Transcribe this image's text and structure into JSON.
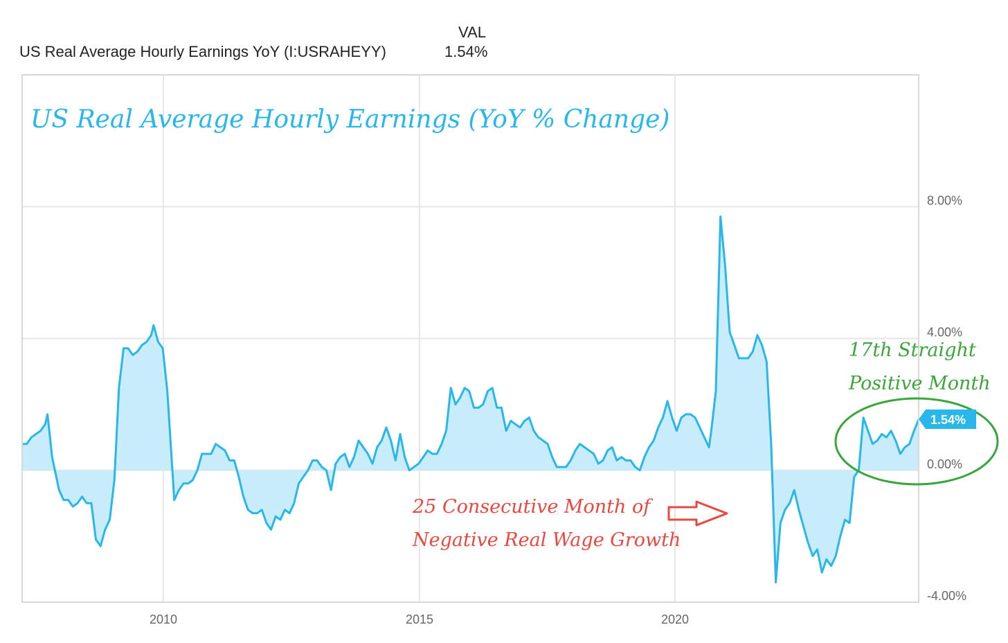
{
  "legend": {
    "column_header": "VAL",
    "series_label": "US Real Average Hourly Earnings YoY (I:USRAHEYY)",
    "series_value": "1.54%"
  },
  "annotations": {
    "title": "US Real Average Hourly Earnings (YoY % Change)",
    "positive_line1": "17th Straight",
    "positive_line2": "Positive Month",
    "negative_line1": "25 Consecutive Month of",
    "negative_line2": "Negative Real Wage Growth"
  },
  "colors": {
    "line": "#29b6e8",
    "fill": "#c8ecf9",
    "grid": "#e6e6e6",
    "title_text": "#29b6e8",
    "positive_note": "#3aa53a",
    "negative_note": "#e8483f",
    "badge": "#29b6e8"
  },
  "chart_data": {
    "type": "area",
    "title": "US Real Average Hourly Earnings (YoY % Change)",
    "xlabel": "",
    "ylabel": "",
    "xlim": [
      2007.2,
      2024.8
    ],
    "ylim": [
      -4.0,
      12.0
    ],
    "y_ticks": [
      {
        "value": 8,
        "label": "8.00%"
      },
      {
        "value": 4,
        "label": "4.00%"
      },
      {
        "value": 0,
        "label": "0.00%"
      },
      {
        "value": -4,
        "label": "-4.00%"
      }
    ],
    "x_ticks": [
      {
        "value": 2010,
        "label": "2010"
      },
      {
        "value": 2015,
        "label": "2015"
      },
      {
        "value": 2020,
        "label": "2020"
      }
    ],
    "grid": true,
    "last_value_label": "1.54%",
    "series": [
      {
        "name": "US Real Average Hourly Earnings YoY (I:USRAHEYY)",
        "points": [
          [
            2007.2,
            0.8
          ],
          [
            2007.3,
            0.8
          ],
          [
            2007.4,
            1.0
          ],
          [
            2007.6,
            1.2
          ],
          [
            2007.7,
            1.4
          ],
          [
            2007.75,
            1.7
          ],
          [
            2007.85,
            0.4
          ],
          [
            2008.0,
            -0.6
          ],
          [
            2008.1,
            -0.9
          ],
          [
            2008.2,
            -0.9
          ],
          [
            2008.3,
            -1.1
          ],
          [
            2008.4,
            -1.0
          ],
          [
            2008.5,
            -0.8
          ],
          [
            2008.6,
            -1.0
          ],
          [
            2008.7,
            -1.0
          ],
          [
            2008.8,
            -2.1
          ],
          [
            2008.9,
            -2.3
          ],
          [
            2009.0,
            -1.8
          ],
          [
            2009.1,
            -1.5
          ],
          [
            2009.2,
            -0.3
          ],
          [
            2009.3,
            2.5
          ],
          [
            2009.4,
            3.7
          ],
          [
            2009.5,
            3.7
          ],
          [
            2009.6,
            3.5
          ],
          [
            2009.7,
            3.6
          ],
          [
            2009.8,
            3.8
          ],
          [
            2009.9,
            3.9
          ],
          [
            2010.0,
            4.1
          ],
          [
            2010.05,
            4.4
          ],
          [
            2010.15,
            3.9
          ],
          [
            2010.25,
            3.7
          ],
          [
            2010.35,
            2.4
          ],
          [
            2010.45,
            0.2
          ],
          [
            2010.5,
            -0.9
          ],
          [
            2010.6,
            -0.6
          ],
          [
            2010.7,
            -0.4
          ],
          [
            2010.8,
            -0.4
          ],
          [
            2010.9,
            -0.3
          ],
          [
            2011.0,
            0.0
          ],
          [
            2011.1,
            0.5
          ],
          [
            2011.2,
            0.5
          ],
          [
            2011.3,
            0.5
          ],
          [
            2011.4,
            0.8
          ],
          [
            2011.5,
            0.7
          ],
          [
            2011.6,
            0.6
          ],
          [
            2011.7,
            0.3
          ],
          [
            2011.8,
            0.3
          ],
          [
            2011.9,
            -0.2
          ],
          [
            2012.0,
            -0.8
          ],
          [
            2012.1,
            -1.2
          ],
          [
            2012.2,
            -1.3
          ],
          [
            2012.3,
            -1.3
          ],
          [
            2012.4,
            -1.2
          ],
          [
            2012.5,
            -1.6
          ],
          [
            2012.6,
            -1.8
          ],
          [
            2012.7,
            -1.4
          ],
          [
            2012.8,
            -1.5
          ],
          [
            2012.9,
            -1.2
          ],
          [
            2013.0,
            -1.3
          ],
          [
            2013.1,
            -1.0
          ],
          [
            2013.2,
            -0.4
          ],
          [
            2013.3,
            -0.2
          ],
          [
            2013.4,
            0.0
          ],
          [
            2013.5,
            0.3
          ],
          [
            2013.6,
            0.3
          ],
          [
            2013.7,
            0.1
          ],
          [
            2013.8,
            0.0
          ],
          [
            2013.9,
            -0.6
          ],
          [
            2014.0,
            0.2
          ],
          [
            2014.1,
            0.4
          ],
          [
            2014.2,
            0.5
          ],
          [
            2014.3,
            0.1
          ],
          [
            2014.4,
            0.4
          ],
          [
            2014.5,
            0.9
          ],
          [
            2014.6,
            0.7
          ],
          [
            2014.7,
            0.5
          ],
          [
            2014.8,
            0.2
          ],
          [
            2014.9,
            0.7
          ],
          [
            2015.0,
            0.9
          ],
          [
            2015.1,
            1.3
          ],
          [
            2015.2,
            0.9
          ],
          [
            2015.3,
            0.3
          ],
          [
            2015.4,
            1.1
          ],
          [
            2015.5,
            0.4
          ],
          [
            2015.6,
            0.0
          ],
          [
            2015.7,
            0.1
          ],
          [
            2015.8,
            0.2
          ],
          [
            2015.9,
            0.4
          ],
          [
            2016.0,
            0.6
          ],
          [
            2016.1,
            0.5
          ],
          [
            2016.2,
            0.5
          ],
          [
            2016.3,
            0.8
          ],
          [
            2016.4,
            1.2
          ],
          [
            2016.5,
            2.5
          ],
          [
            2016.6,
            2.0
          ],
          [
            2016.7,
            2.2
          ],
          [
            2016.8,
            2.5
          ],
          [
            2016.9,
            2.4
          ],
          [
            2017.0,
            1.9
          ],
          [
            2017.1,
            1.9
          ],
          [
            2017.2,
            2.0
          ],
          [
            2017.3,
            2.4
          ],
          [
            2017.4,
            2.5
          ],
          [
            2017.5,
            1.9
          ],
          [
            2017.6,
            1.9
          ],
          [
            2017.7,
            1.2
          ],
          [
            2017.8,
            1.5
          ],
          [
            2017.9,
            1.4
          ],
          [
            2018.0,
            1.3
          ],
          [
            2018.1,
            1.5
          ],
          [
            2018.2,
            1.6
          ],
          [
            2018.3,
            1.2
          ],
          [
            2018.4,
            1.0
          ],
          [
            2018.5,
            0.9
          ],
          [
            2018.6,
            0.8
          ],
          [
            2018.7,
            0.4
          ],
          [
            2018.8,
            0.1
          ],
          [
            2018.9,
            0.1
          ],
          [
            2019.0,
            0.1
          ],
          [
            2019.1,
            0.3
          ],
          [
            2019.2,
            0.6
          ],
          [
            2019.3,
            0.8
          ],
          [
            2019.4,
            0.7
          ],
          [
            2019.5,
            0.6
          ],
          [
            2019.6,
            0.5
          ],
          [
            2019.7,
            0.2
          ],
          [
            2019.8,
            0.3
          ],
          [
            2019.9,
            0.6
          ],
          [
            2020.0,
            0.7
          ],
          [
            2020.1,
            0.3
          ],
          [
            2020.2,
            0.4
          ],
          [
            2020.3,
            0.3
          ],
          [
            2020.4,
            0.3
          ],
          [
            2020.5,
            0.1
          ],
          [
            2020.6,
            0.0
          ],
          [
            2020.7,
            0.4
          ],
          [
            2020.8,
            0.7
          ],
          [
            2020.9,
            0.9
          ],
          [
            2021.0,
            1.3
          ],
          [
            2021.1,
            1.6
          ],
          [
            2021.2,
            2.1
          ],
          [
            2021.3,
            1.6
          ],
          [
            2021.4,
            1.2
          ],
          [
            2021.5,
            1.6
          ],
          [
            2021.6,
            1.7
          ],
          [
            2021.7,
            1.7
          ],
          [
            2021.8,
            1.6
          ],
          [
            2021.9,
            1.3
          ],
          [
            2022.0,
            1.0
          ],
          [
            2022.1,
            0.7
          ],
          [
            2022.15,
            1.2
          ],
          [
            2022.25,
            2.4
          ],
          [
            2022.35,
            7.7
          ],
          [
            2022.45,
            6.2
          ],
          [
            2022.55,
            4.2
          ],
          [
            2022.65,
            3.8
          ],
          [
            2022.75,
            3.4
          ],
          [
            2022.85,
            3.4
          ],
          [
            2022.95,
            3.4
          ],
          [
            2023.05,
            3.6
          ],
          [
            2023.15,
            4.1
          ],
          [
            2023.25,
            3.8
          ],
          [
            2023.35,
            3.3
          ],
          [
            2023.45,
            0.8
          ],
          [
            2023.55,
            -3.4
          ],
          [
            2023.65,
            -1.6
          ],
          [
            2023.75,
            -1.2
          ],
          [
            2023.85,
            -1.0
          ],
          [
            2023.95,
            -0.6
          ],
          [
            2024.05,
            -1.2
          ],
          [
            2024.15,
            -1.7
          ],
          [
            2024.25,
            -2.2
          ],
          [
            2024.35,
            -2.6
          ],
          [
            2024.45,
            -2.4
          ],
          [
            2024.55,
            -3.1
          ],
          [
            2024.65,
            -2.7
          ],
          [
            2024.75,
            -2.9
          ],
          [
            2024.85,
            -2.6
          ],
          [
            2024.95,
            -2.0
          ],
          [
            2025.05,
            -1.5
          ],
          [
            2025.15,
            -1.6
          ],
          [
            2025.25,
            -0.2
          ],
          [
            2025.35,
            0.0
          ],
          [
            2025.45,
            1.6
          ],
          [
            2025.55,
            1.2
          ],
          [
            2025.65,
            0.8
          ],
          [
            2025.75,
            0.9
          ],
          [
            2025.85,
            1.1
          ],
          [
            2025.95,
            1.0
          ],
          [
            2026.05,
            1.2
          ],
          [
            2026.15,
            0.9
          ],
          [
            2026.25,
            0.5
          ],
          [
            2026.35,
            0.7
          ],
          [
            2026.45,
            0.8
          ],
          [
            2026.55,
            1.2
          ],
          [
            2026.65,
            1.54
          ]
        ]
      }
    ]
  }
}
